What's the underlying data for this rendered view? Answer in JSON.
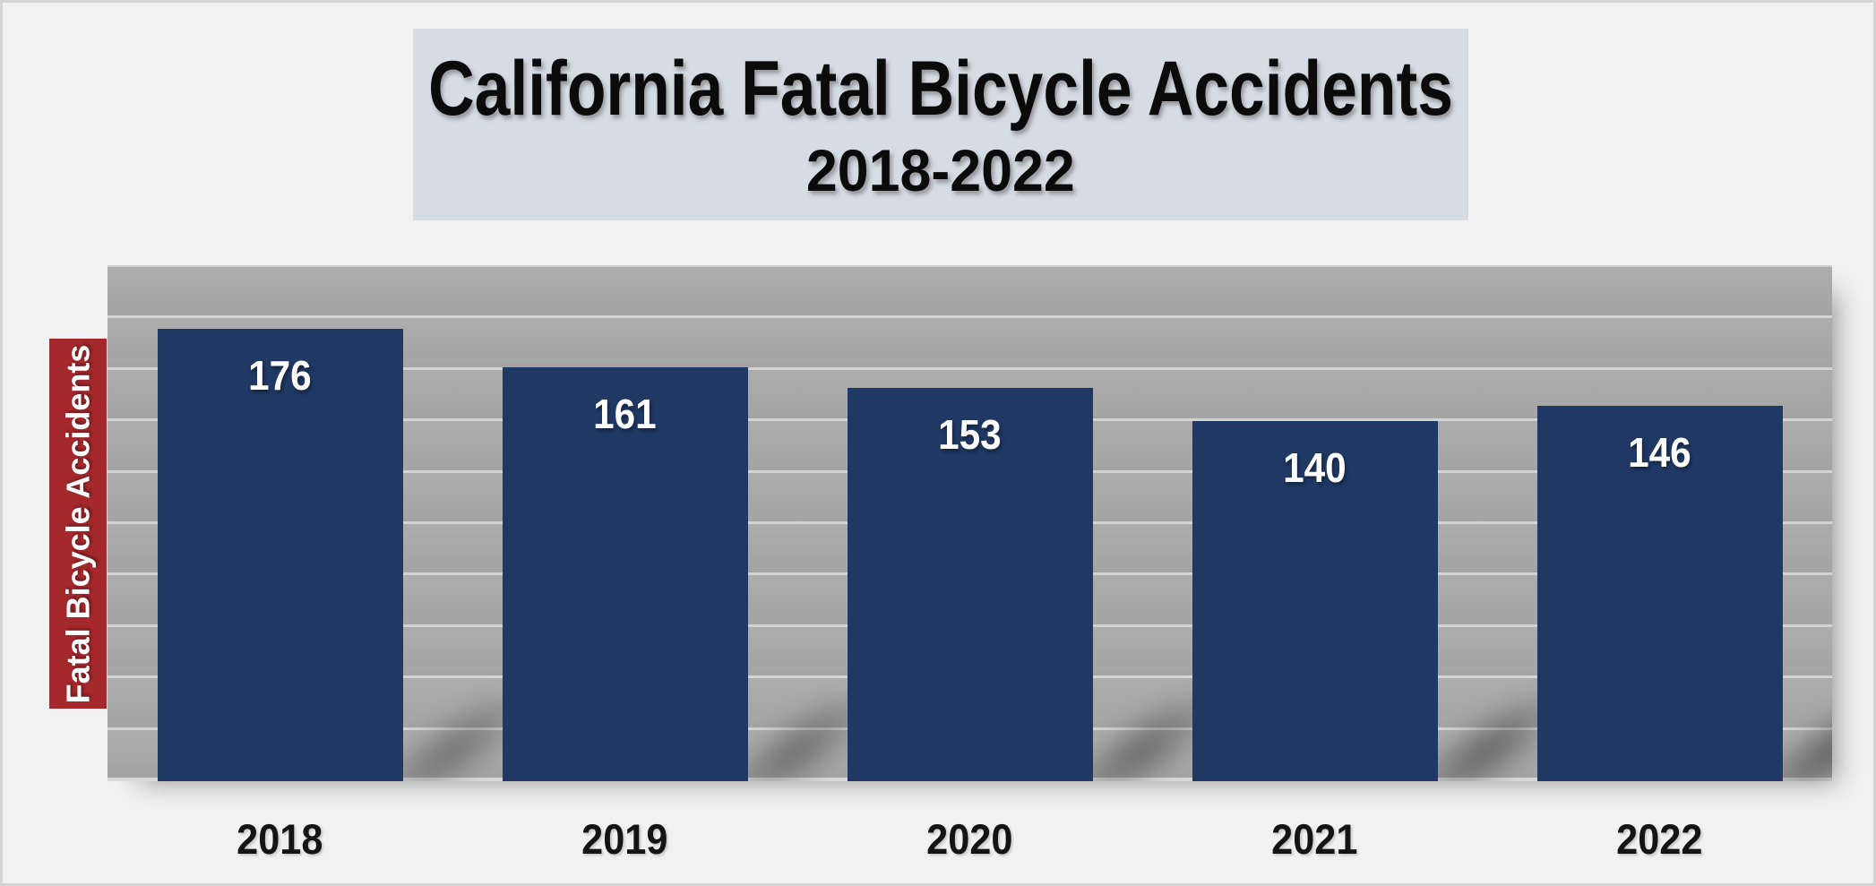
{
  "title": {
    "line1": "California Fatal Bicycle Accidents",
    "line2": "2018-2022"
  },
  "y_axis": {
    "label": "Fatal Bicycle Accidents"
  },
  "chart_data": {
    "type": "bar",
    "title": "California Fatal Bicycle Accidents 2018-2022",
    "categories": [
      "2018",
      "2019",
      "2020",
      "2021",
      "2022"
    ],
    "values": [
      176,
      161,
      153,
      140,
      146
    ],
    "xlabel": "",
    "ylabel": "Fatal Bicycle Accidents",
    "ylim": [
      0,
      200
    ],
    "gridline_step": 20,
    "grid": true,
    "legend": false,
    "data_labels": "inside-top-white-bold",
    "bar_slot_fraction": 0.712
  },
  "colors": {
    "page_bg": "#F1F1F1",
    "page_border": "#D4D4D4",
    "title_bg": "#D6DCE4",
    "title_text": "#0B0B0B",
    "plot_bg": "#A7A7A7",
    "gridline": "#D3D3D3",
    "bar_fill": "#1F3864",
    "bar_value_text": "#FFFFFF",
    "ylabel_bg": "#A4282C",
    "ylabel_text": "#FFFFFF",
    "xlabel_text": "#141414"
  }
}
